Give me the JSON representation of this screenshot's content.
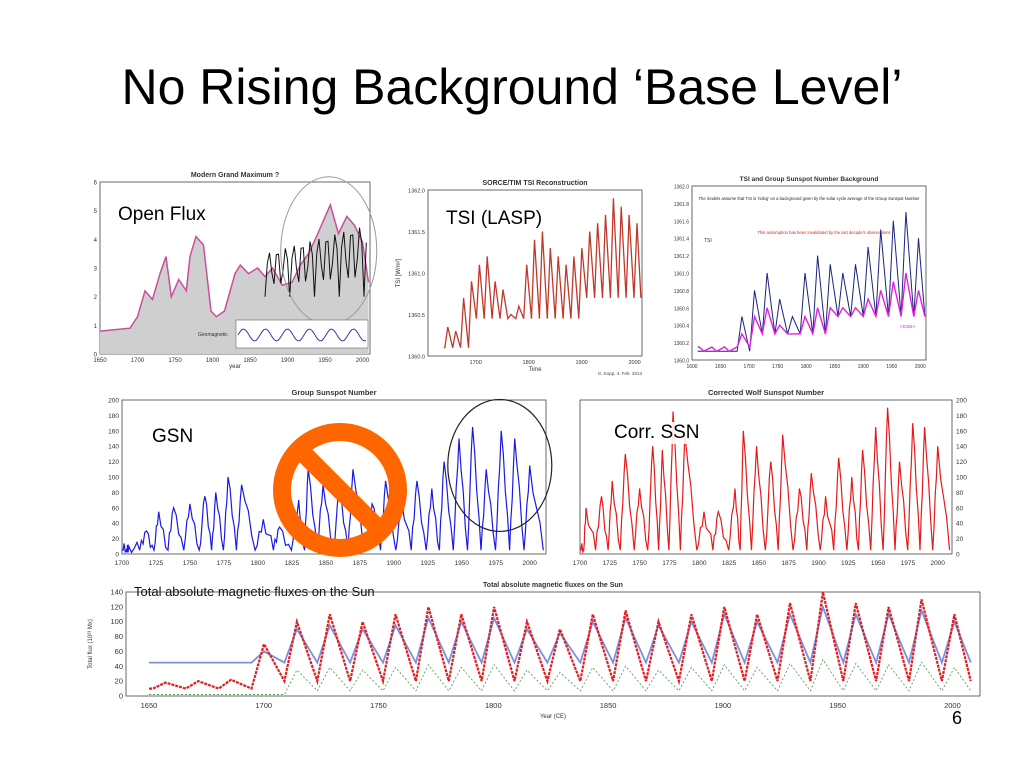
{
  "slide": {
    "title": "No Rising Background ‘Base Level’",
    "page_number": "6"
  },
  "labels": {
    "open_flux": "Open Flux",
    "tsi_lasp": "TSI (LASP)",
    "gsn": "GSN",
    "corr_ssn": "Corr. SSN"
  },
  "colors": {
    "gsn_line": "#1a1ae6",
    "ssn_line": "#e61a1a",
    "tsi_line": "#c0392b",
    "openflux_fill": "#cfcfcf",
    "openflux_line": "#c8509a",
    "no_sign": "#ff6600",
    "flux_red": "#e02020",
    "flux_blue": "#7f8fe0",
    "flux_green": "#5aa05a"
  },
  "chart_data": [
    {
      "id": "open-flux",
      "type": "area",
      "title": "Modern Grand Maximum ?",
      "xlabel": "year",
      "ylabel": "",
      "xlim": [
        1650,
        2010
      ],
      "ylim": [
        0,
        6
      ],
      "x_ticks": [
        "1650",
        "1700",
        "1750",
        "1800",
        "1850",
        "1900",
        "1950",
        "2000"
      ],
      "y_ticks": [
        "0",
        "1",
        "2",
        "3",
        "4",
        "5",
        "6"
      ],
      "annotations": [
        "Geomagnetic"
      ],
      "x": [
        1650,
        1690,
        1700,
        1710,
        1720,
        1730,
        1738,
        1745,
        1755,
        1765,
        1770,
        1778,
        1788,
        1798,
        1805,
        1816,
        1830,
        1837,
        1848,
        1860,
        1870,
        1880,
        1893,
        1906,
        1917,
        1928,
        1937,
        1947,
        1957,
        1968,
        1979,
        1989,
        2000,
        2008
      ],
      "values": [
        0.8,
        0.9,
        1.3,
        2.2,
        1.9,
        2.8,
        3.4,
        2.0,
        2.6,
        2.2,
        3.4,
        4.1,
        3.8,
        1.5,
        1.3,
        1.5,
        2.8,
        3.1,
        2.8,
        3.0,
        2.7,
        3.0,
        2.4,
        2.5,
        3.1,
        3.5,
        4.0,
        4.6,
        5.2,
        4.2,
        4.8,
        4.5,
        3.9,
        2.5
      ]
    },
    {
      "id": "tsi-lasp",
      "type": "line",
      "title": "SORCE/TIM TSI Reconstruction",
      "xlabel": "Time",
      "ylabel": "TSI [W/m²]",
      "xlim": [
        1610,
        2014
      ],
      "ylim": [
        1360.0,
        1362.0
      ],
      "x_ticks": [
        "1700",
        "1800",
        "1900",
        "2000"
      ],
      "y_ticks": [
        "1360.0",
        "1360.5",
        "1361.0",
        "1361.5",
        "1362.0"
      ],
      "annotations": [
        "G. Kopp, 4. Feb. 2013"
      ],
      "series": [
        {
          "name": "",
          "cycle_peaks": [
            1360.35,
            1360.3,
            1360.7,
            1360.9,
            1361.1,
            1361.2,
            1360.9,
            1360.8,
            1360.5,
            1360.6,
            1361.1,
            1361.4,
            1361.5,
            1361.3,
            1361.2,
            1361.1,
            1361.2,
            1361.3,
            1361.5,
            1361.6,
            1361.7,
            1361.9,
            1361.8,
            1361.7,
            1361.6
          ]
        }
      ]
    },
    {
      "id": "tsi-group-ssn",
      "type": "line",
      "title": "TSI and Group Sunspot Number Background",
      "xlabel": "",
      "ylabel": "",
      "xlim": [
        1600,
        2010
      ],
      "ylim": [
        1360.0,
        1362.0
      ],
      "x_ticks": [
        "1600",
        "1650",
        "1700",
        "1750",
        "1800",
        "1850",
        "1900",
        "1950",
        "2000"
      ],
      "y_ticks": [
        "1360.0",
        "1360.2",
        "1360.4",
        "1360.6",
        "1360.8",
        "1361.0",
        "1361.2",
        "1361.4",
        "1361.6",
        "1361.8",
        "1362.0"
      ],
      "annotations": [
        "The models assume that TSI is 'riding' on a background given by the solar cycle average of the Group Sunspot Number",
        "This assumption has been invalidated by the last decade's observations",
        "TSI",
        "<GSN>"
      ],
      "series": [
        {
          "name": "TSI",
          "cycle_peaks": [
            1360.1,
            1360.1,
            1360.1,
            1360.5,
            1360.8,
            1361.0,
            1360.7,
            1360.5,
            1361.0,
            1361.2,
            1361.1,
            1361.0,
            1361.1,
            1361.3,
            1361.5,
            1361.6,
            1361.7,
            1361.4
          ]
        },
        {
          "name": "<GSN>",
          "cycle_peaks": [
            1360.1,
            1360.1,
            1360.1,
            1360.3,
            1360.5,
            1360.6,
            1360.4,
            1360.3,
            1360.5,
            1360.6,
            1360.6,
            1360.6,
            1360.6,
            1360.7,
            1360.8,
            1360.9,
            1361.0,
            1360.8
          ]
        }
      ]
    },
    {
      "id": "group-sunspot-number",
      "type": "line",
      "title": "Group Sunspot Number",
      "xlabel": "",
      "ylabel": "",
      "xlim": [
        1700,
        2012
      ],
      "ylim": [
        0,
        200
      ],
      "x_ticks": [
        "1700",
        "1725",
        "1750",
        "1775",
        "1800",
        "1825",
        "1850",
        "1875",
        "1900",
        "1925",
        "1950",
        "1975",
        "2000"
      ],
      "y_ticks": [
        "0",
        "20",
        "40",
        "60",
        "80",
        "100",
        "120",
        "140",
        "160",
        "180",
        "200"
      ],
      "series": [
        {
          "name": "",
          "cycle_x": [
            1705,
            1718,
            1727,
            1738,
            1750,
            1761,
            1769,
            1778,
            1788,
            1804,
            1816,
            1830,
            1837,
            1848,
            1860,
            1870,
            1884,
            1894,
            1906,
            1917,
            1928,
            1937,
            1948,
            1958,
            1968,
            1979,
            1989,
            2000
          ],
          "cycle_peaks": [
            10,
            30,
            55,
            60,
            65,
            75,
            80,
            100,
            90,
            45,
            35,
            70,
            110,
            90,
            85,
            110,
            65,
            95,
            70,
            95,
            85,
            120,
            150,
            165,
            110,
            160,
            150,
            115
          ]
        }
      ]
    },
    {
      "id": "corrected-wolf-sunspot-number",
      "type": "line",
      "title": "Corrected Wolf Sunspot Number",
      "xlabel": "",
      "ylabel": "",
      "xlim": [
        1700,
        2012
      ],
      "ylim": [
        0,
        200
      ],
      "x_ticks": [
        "1700",
        "1725",
        "1750",
        "1775",
        "1800",
        "1825",
        "1850",
        "1875",
        "1900",
        "1925",
        "1950",
        "1975",
        "2000"
      ],
      "y_ticks": [
        "0",
        "20",
        "40",
        "60",
        "80",
        "100",
        "120",
        "140",
        "160",
        "180",
        "200"
      ],
      "series": [
        {
          "name": "",
          "cycle_x": [
            1705,
            1718,
            1727,
            1738,
            1750,
            1761,
            1769,
            1778,
            1788,
            1804,
            1816,
            1830,
            1837,
            1848,
            1860,
            1870,
            1884,
            1894,
            1906,
            1917,
            1928,
            1937,
            1948,
            1958,
            1968,
            1979,
            1989,
            2000
          ],
          "cycle_peaks": [
            60,
            75,
            95,
            130,
            85,
            140,
            135,
            185,
            155,
            55,
            55,
            85,
            160,
            140,
            120,
            155,
            85,
            105,
            75,
            125,
            100,
            135,
            165,
            190,
            120,
            170,
            165,
            140
          ]
        }
      ]
    },
    {
      "id": "total-magnetic-flux",
      "type": "line",
      "title": "Total absolute magnetic fluxes on the Sun",
      "xlabel": "Year (CE)",
      "ylabel": "Total flux (10²³ Mx)",
      "xlim": [
        1640,
        2012
      ],
      "ylim": [
        0,
        140
      ],
      "x_ticks": [
        "1650",
        "1700",
        "1750",
        "1800",
        "1850",
        "1900",
        "1950",
        "2000"
      ],
      "y_ticks": [
        "0",
        "20",
        "40",
        "60",
        "80",
        "100",
        "120",
        "140"
      ],
      "series": [
        {
          "name": "",
          "cycle_peaks": [
            18,
            20,
            22,
            70,
            100,
            110,
            100,
            110,
            120,
            110,
            120,
            100,
            90,
            110,
            115,
            100,
            110,
            120,
            110,
            125,
            140,
            125,
            120,
            130,
            110
          ]
        },
        {
          "name": "",
          "cycle_peaks": [
            45,
            45,
            45,
            60,
            90,
            95,
            90,
            95,
            105,
            100,
            105,
            90,
            85,
            100,
            105,
            95,
            100,
            110,
            100,
            110,
            120,
            110,
            110,
            115,
            100
          ]
        }
      ]
    }
  ]
}
